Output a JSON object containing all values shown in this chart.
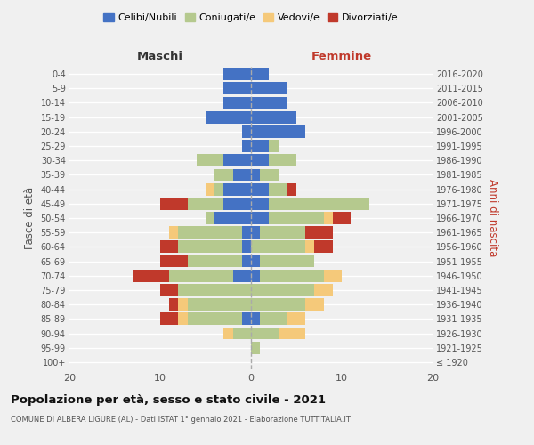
{
  "age_groups": [
    "100+",
    "95-99",
    "90-94",
    "85-89",
    "80-84",
    "75-79",
    "70-74",
    "65-69",
    "60-64",
    "55-59",
    "50-54",
    "45-49",
    "40-44",
    "35-39",
    "30-34",
    "25-29",
    "20-24",
    "15-19",
    "10-14",
    "5-9",
    "0-4"
  ],
  "birth_years": [
    "≤ 1920",
    "1921-1925",
    "1926-1930",
    "1931-1935",
    "1936-1940",
    "1941-1945",
    "1946-1950",
    "1951-1955",
    "1956-1960",
    "1961-1965",
    "1966-1970",
    "1971-1975",
    "1976-1980",
    "1981-1985",
    "1986-1990",
    "1991-1995",
    "1996-2000",
    "2001-2005",
    "2006-2010",
    "2011-2015",
    "2016-2020"
  ],
  "colors": {
    "celibe": "#4472C4",
    "coniugato": "#b5c98e",
    "vedovo": "#f5c97a",
    "divorziato": "#c0392b"
  },
  "maschi": {
    "celibe": [
      0,
      0,
      0,
      1,
      0,
      0,
      2,
      1,
      1,
      1,
      4,
      3,
      3,
      2,
      3,
      1,
      1,
      5,
      3,
      3,
      3
    ],
    "coniugato": [
      0,
      0,
      2,
      6,
      7,
      8,
      7,
      6,
      7,
      7,
      1,
      4,
      1,
      2,
      3,
      0,
      0,
      0,
      0,
      0,
      0
    ],
    "vedovo": [
      0,
      0,
      1,
      1,
      1,
      0,
      0,
      0,
      0,
      1,
      0,
      0,
      1,
      0,
      0,
      0,
      0,
      0,
      0,
      0,
      0
    ],
    "divorziato": [
      0,
      0,
      0,
      2,
      1,
      2,
      4,
      3,
      2,
      0,
      0,
      3,
      0,
      0,
      0,
      0,
      0,
      0,
      0,
      0,
      0
    ]
  },
  "femmine": {
    "nubile": [
      0,
      0,
      0,
      1,
      0,
      0,
      1,
      1,
      0,
      1,
      2,
      2,
      2,
      1,
      2,
      2,
      6,
      5,
      4,
      4,
      2
    ],
    "coniugata": [
      0,
      1,
      3,
      3,
      6,
      7,
      7,
      6,
      6,
      5,
      6,
      11,
      2,
      2,
      3,
      1,
      0,
      0,
      0,
      0,
      0
    ],
    "vedova": [
      0,
      0,
      3,
      2,
      2,
      2,
      2,
      0,
      1,
      0,
      1,
      0,
      0,
      0,
      0,
      0,
      0,
      0,
      0,
      0,
      0
    ],
    "divorziata": [
      0,
      0,
      0,
      0,
      0,
      0,
      0,
      0,
      2,
      3,
      2,
      0,
      1,
      0,
      0,
      0,
      0,
      0,
      0,
      0,
      0
    ]
  },
  "title": "Popolazione per età, sesso e stato civile - 2021",
  "subtitle": "COMUNE DI ALBERA LIGURE (AL) - Dati ISTAT 1° gennaio 2021 - Elaborazione TUTTITALIA.IT",
  "xlabel_left": "Maschi",
  "xlabel_right": "Femmine",
  "ylabel_left": "Fasce di età",
  "ylabel_right": "Anni di nascita",
  "xlim": 20,
  "legend_labels": [
    "Celibi/Nubili",
    "Coniugati/e",
    "Vedovi/e",
    "Divorziati/e"
  ],
  "background_color": "#f0f0f0"
}
